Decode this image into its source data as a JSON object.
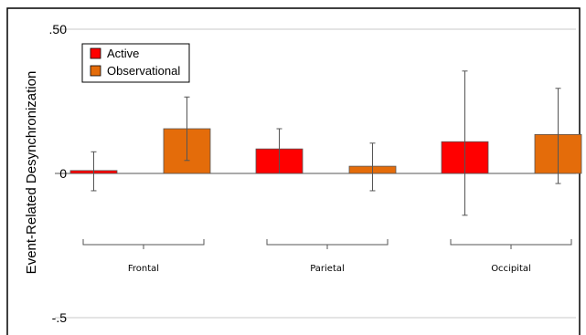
{
  "chart_data": {
    "type": "bar",
    "title": "",
    "xlabel": "",
    "ylabel": "Event-Related Desynchronization",
    "ylim": [
      -0.5,
      0.5
    ],
    "yticks": [
      {
        "value": 0.5,
        "label": ".50"
      },
      {
        "value": 0,
        "label": "0"
      },
      {
        "value": -0.5,
        "label": "-.5"
      }
    ],
    "categories": [
      "Frontal",
      "Parietal",
      "Occipital"
    ],
    "series": [
      {
        "name": "Active",
        "color": "#ff0000",
        "values": [
          0.01,
          0.085,
          0.11
        ],
        "err_low": [
          -0.06,
          0.0,
          -0.145
        ],
        "err_high": [
          0.075,
          0.155,
          0.355
        ]
      },
      {
        "name": "Observational",
        "color": "#e46c0a",
        "values": [
          0.155,
          0.025,
          0.135
        ],
        "err_low": [
          0.045,
          -0.06,
          -0.035
        ],
        "err_high": [
          0.265,
          0.105,
          0.295
        ]
      }
    ],
    "legend": "top-left",
    "grid": true
  }
}
